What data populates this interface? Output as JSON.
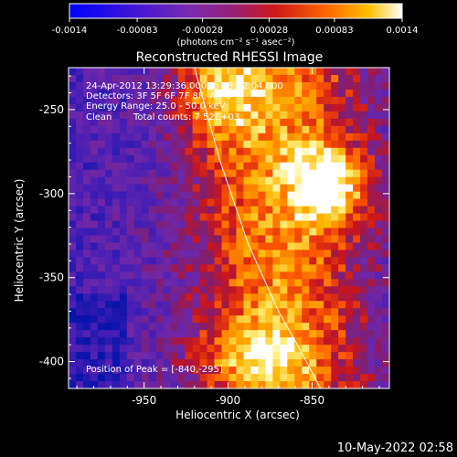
{
  "colorbar": {
    "tick_labels": [
      "-0.0014",
      "-0.00083",
      "-0.00028",
      "0.00028",
      "0.00083",
      "0.0014"
    ],
    "range": [
      -0.0014,
      0.0014
    ],
    "units": "(photons cm⁻² s⁻¹ asec⁻²)"
  },
  "overlay": {
    "line1": "24-Apr-2012 13:29:36.000 to 13:32:04.000",
    "line2": "Detectors: 3F 5F 6F 7F 8F, Att 0",
    "line3": "Energy Range: 25.0 - 50.0 keV",
    "line4a": "Clean",
    "line4b": "Total counts: 7.52E+03",
    "peak": "Position of Peak = [-840,-295]"
  },
  "footer": {
    "date": "10-May-2022 02:58"
  },
  "chart_data": {
    "type": "heatmap",
    "title": "Reconstructed RHESSI Image",
    "xlabel": "Heliocentric X (arcsec)",
    "ylabel": "Heliocentric Y (arcsec)",
    "xlim": [
      -995,
      -804
    ],
    "ylim": [
      -416,
      -225
    ],
    "x_ticks": [
      -950,
      -900,
      -850
    ],
    "y_ticks": [
      -250,
      -300,
      -350,
      -400
    ],
    "x_tick_labels": [
      "-950",
      "-900",
      "-850"
    ],
    "y_tick_labels": [
      "-250",
      "-300",
      "-350",
      "-400"
    ],
    "peak_position": [
      -840,
      -295
    ],
    "limb_curve": [
      [
        -920,
        -225
      ],
      [
        -905,
        -280
      ],
      [
        -888,
        -330
      ],
      [
        -870,
        -370
      ],
      [
        -856,
        -395
      ],
      [
        -845,
        -416
      ]
    ],
    "colormap": "blue-purple-red-orange-yellow-white"
  }
}
